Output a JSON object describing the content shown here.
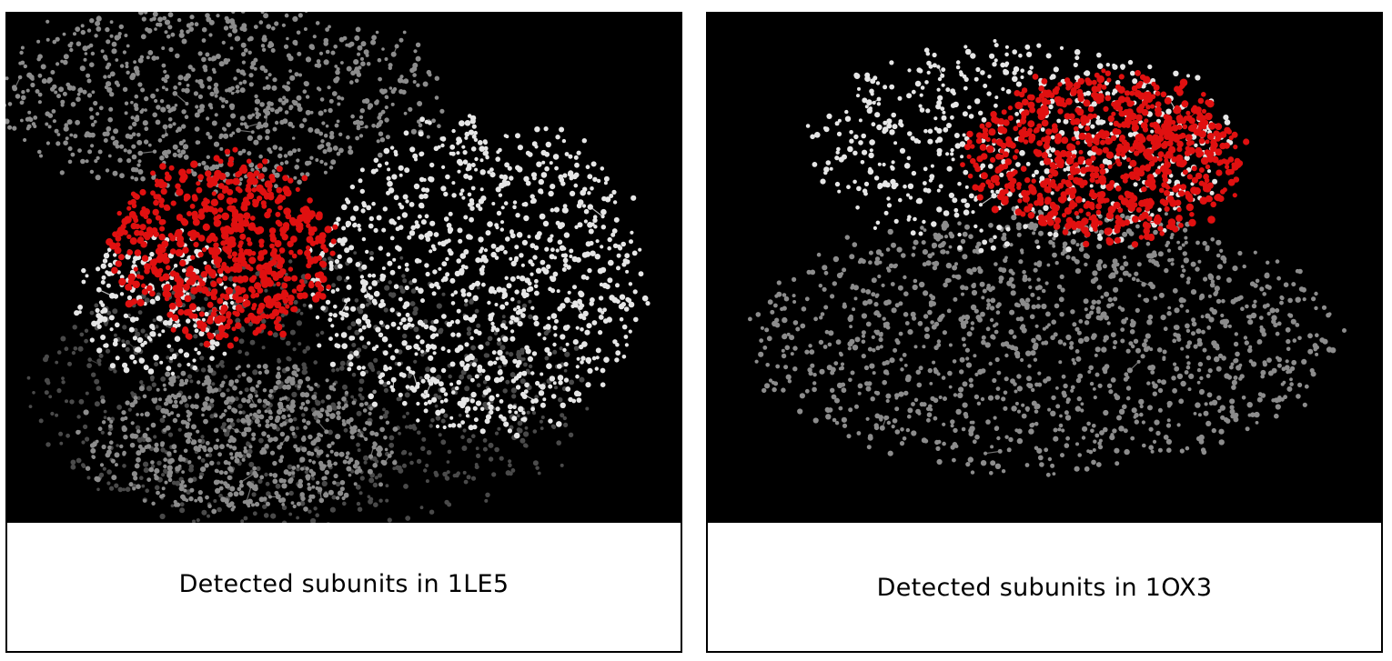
{
  "panels": [
    {
      "caption": "Detected subunits in 1LE5",
      "image_description_icon": "molecule-ball-and-stick-icon"
    },
    {
      "caption": "Detected subunits in 1OX3",
      "image_description_icon": "molecule-ball-and-stick-icon"
    }
  ],
  "colors": {
    "background": "#000000",
    "highlight_subunit": "#e01010",
    "light_subunit": "#e6e6e6",
    "mid_subunit": "#8c8c8c",
    "dark_subunit": "#4a4a4a"
  }
}
